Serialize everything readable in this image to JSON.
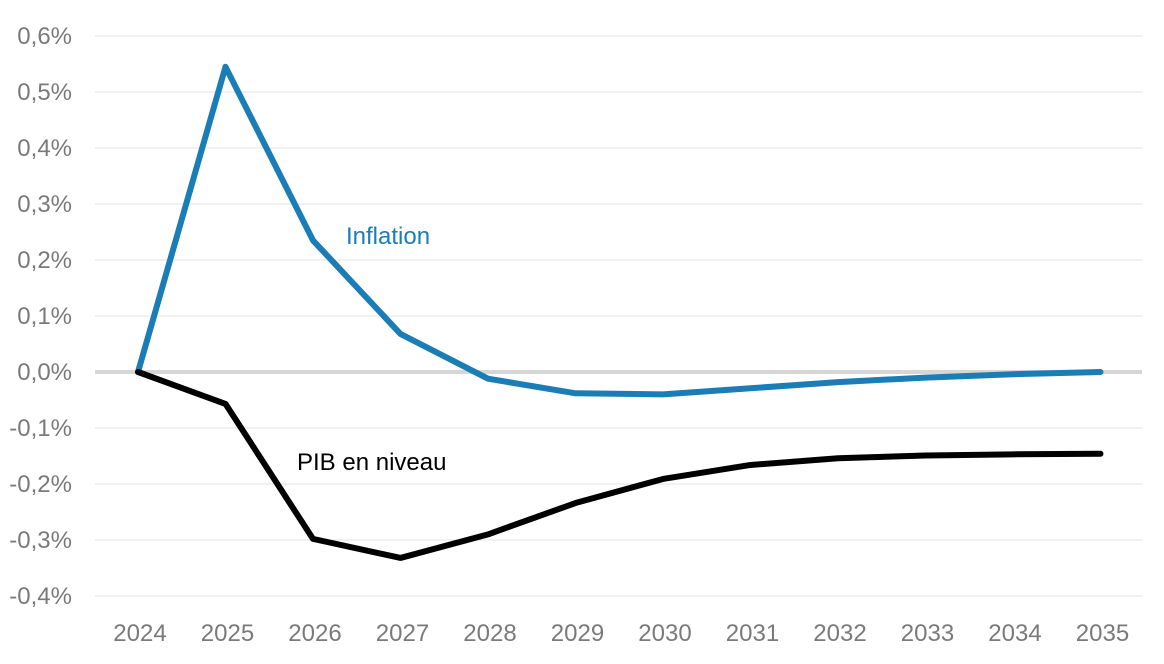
{
  "chart_data": {
    "type": "line",
    "title": "",
    "xlabel": "",
    "ylabel": "",
    "x": [
      "2024",
      "2025",
      "2026",
      "2027",
      "2028",
      "2029",
      "2030",
      "2031",
      "2032",
      "2033",
      "2034",
      "2035"
    ],
    "ylim": [
      -0.4,
      0.6
    ],
    "yticks": [
      0.6,
      0.5,
      0.4,
      0.3,
      0.2,
      0.1,
      0.0,
      -0.1,
      -0.2,
      -0.3,
      -0.4
    ],
    "ytick_labels": [
      "0,6%",
      "0,5%",
      "0,4%",
      "0,3%",
      "0,2%",
      "0,1%",
      "0,0%",
      "-0,1%",
      "-0,2%",
      "-0,3%",
      "-0,4%"
    ],
    "grid": true,
    "legend": "inline labels",
    "series": [
      {
        "name": "Inflation",
        "color": "#1a7db5",
        "values": [
          0.0,
          0.545,
          0.235,
          0.068,
          -0.012,
          -0.038,
          -0.04,
          -0.029,
          -0.018,
          -0.01,
          -0.004,
          0.0
        ]
      },
      {
        "name": "PIB en niveau",
        "color": "#000000",
        "values": [
          0.0,
          -0.057,
          -0.298,
          -0.332,
          -0.29,
          -0.234,
          -0.191,
          -0.166,
          -0.154,
          -0.149,
          -0.147,
          -0.146
        ]
      }
    ]
  }
}
